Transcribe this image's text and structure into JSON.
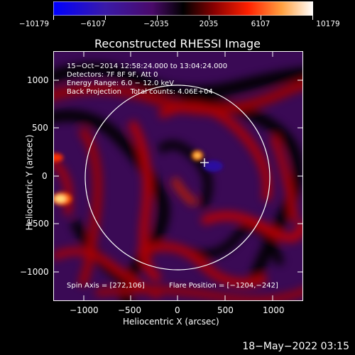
{
  "colorbar": {
    "tick_labels": [
      "−10179",
      "−6107",
      "−2035",
      "2035",
      "6107",
      "10179"
    ],
    "min": -10179,
    "max": 10179
  },
  "title": "Reconstructed RHESSI Image",
  "info": {
    "line1": "15−Oct−2014 12:58:24.000 to 13:04:24.000",
    "line2": "Detectors: 7F 8F 9F, Att 0",
    "line3": "Energy Range: 6.0 − 12.0 keV",
    "line4": "Back Projection    Total counts: 4.06E+04"
  },
  "bottom_info": {
    "spin_axis": "Spin Axis = [272,106]",
    "flare_position": "Flare Position = [−1204,−242]"
  },
  "axes": {
    "xlabel": "Heliocentric X (arcsec)",
    "ylabel": "Heliocentric Y (arcsec)",
    "x_ticks": [
      "−1000",
      "−500",
      "0",
      "500",
      "1000"
    ],
    "y_ticks": [
      "1000",
      "500",
      "0",
      "−500",
      "−1000"
    ]
  },
  "footer": "18−May−2022 03:15"
}
